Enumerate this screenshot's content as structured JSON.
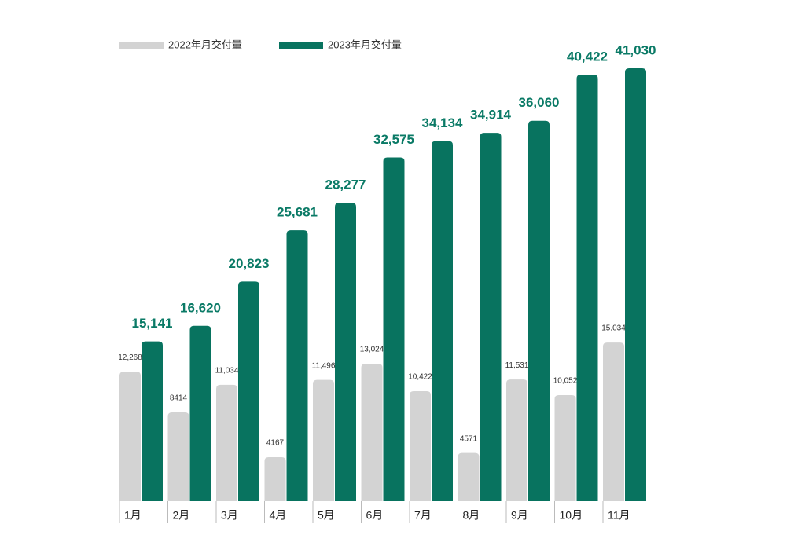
{
  "chart_data": {
    "type": "bar",
    "categories": [
      "1月",
      "2月",
      "3月",
      "4月",
      "5月",
      "6月",
      "7月",
      "8月",
      "9月",
      "10月",
      "11月"
    ],
    "series": [
      {
        "name": "2022年月交付量",
        "color": "#d3d3d3",
        "values": [
          12268,
          8414,
          11034,
          4167,
          11496,
          13024,
          10422,
          4571,
          11531,
          10052,
          15034
        ],
        "value_labels": [
          "12,268",
          "8414",
          "11,034",
          "4167",
          "11,496",
          "13,024",
          "10,422",
          "4571",
          "11,531",
          "10,052",
          "15,034"
        ]
      },
      {
        "name": "2023年月交付量",
        "color": "#08735f",
        "values": [
          15141,
          16620,
          20823,
          25681,
          28277,
          32575,
          34134,
          34914,
          36060,
          40422,
          41030
        ],
        "value_labels": [
          "15,141",
          "16,620",
          "20,823",
          "25,681",
          "28,277",
          "32,575",
          "34,134",
          "34,914",
          "36,060",
          "40,422",
          "41,030"
        ]
      }
    ],
    "legend": "top-left"
  }
}
